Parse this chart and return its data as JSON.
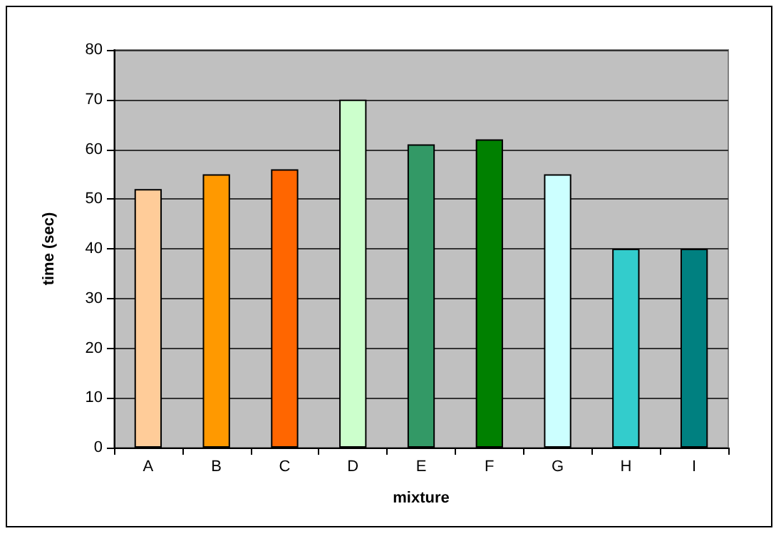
{
  "chart_data": {
    "type": "bar",
    "xlabel": "mixture",
    "ylabel": "time (sec)",
    "categories": [
      "A",
      "B",
      "C",
      "D",
      "E",
      "F",
      "G",
      "H",
      "I"
    ],
    "values": [
      52,
      55,
      56,
      70,
      61,
      62,
      55,
      40,
      40
    ],
    "colors": [
      "#ffcc99",
      "#ff9900",
      "#ff6600",
      "#ccffcc",
      "#339966",
      "#008000",
      "#ccffff",
      "#33cccc",
      "#008080"
    ],
    "ylim": [
      0,
      80
    ],
    "yticks": [
      0,
      10,
      20,
      30,
      40,
      50,
      60,
      70,
      80
    ],
    "grid": "y"
  }
}
